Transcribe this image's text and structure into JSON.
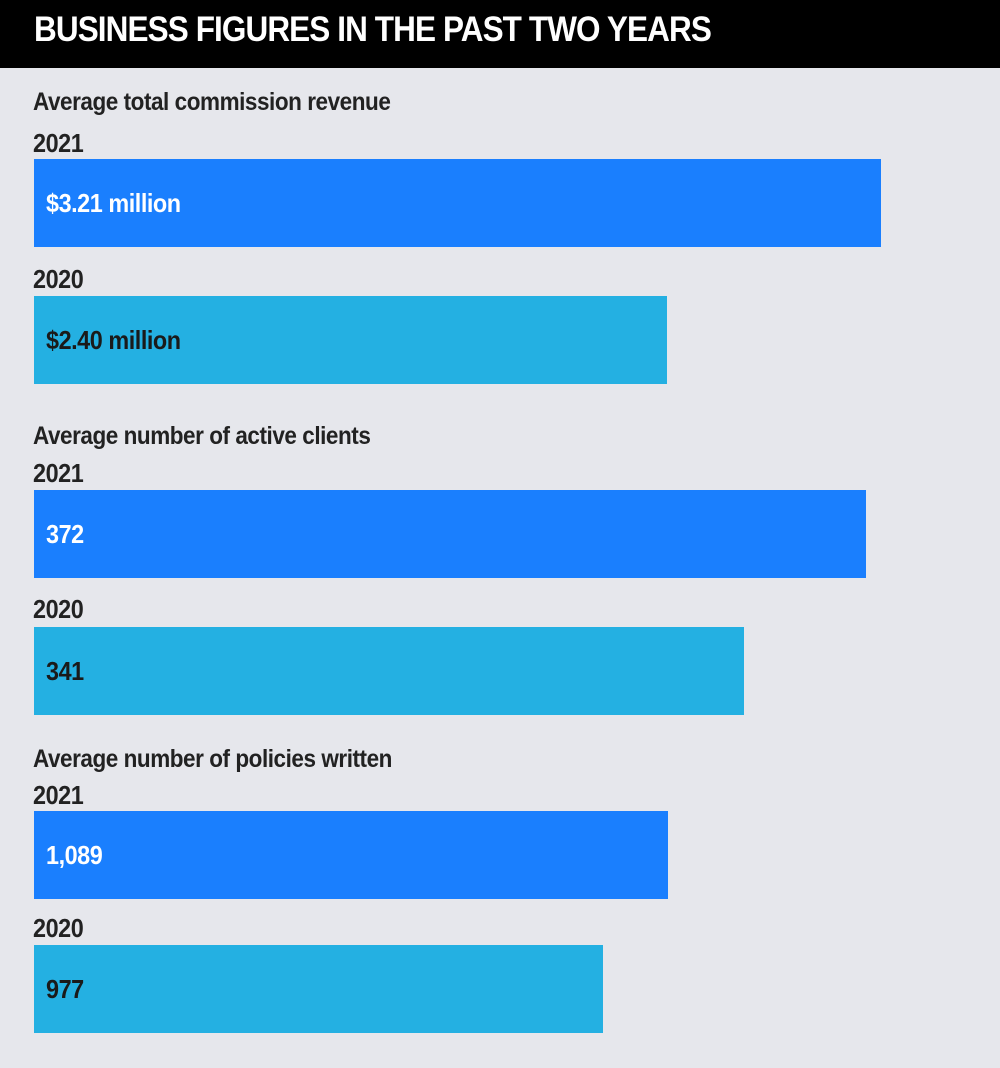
{
  "header": {
    "title": "BUSINESS FIGURES IN THE PAST TWO YEARS"
  },
  "colors": {
    "background": "#e6e7ec",
    "header": "#000000",
    "bar_2021": "#1a7ffe",
    "bar_2020": "#24b0e2",
    "label_on_2021": "#ffffff",
    "label_on_2020": "#1a1a1a"
  },
  "chart_data": [
    {
      "type": "bar",
      "title": "Average total commission revenue",
      "categories": [
        "2021",
        "2020"
      ],
      "values": [
        3.21,
        2.4
      ],
      "labels": [
        "$3.21 million",
        "$2.40 million"
      ],
      "unit": "million"
    },
    {
      "type": "bar",
      "title": "Average number of active clients",
      "categories": [
        "2021",
        "2020"
      ],
      "values": [
        372,
        341
      ],
      "labels": [
        "372",
        "341"
      ]
    },
    {
      "type": "bar",
      "title": "Average number of policies written",
      "categories": [
        "2021",
        "2020"
      ],
      "values": [
        1089,
        977
      ],
      "labels": [
        "1,089",
        "977"
      ]
    }
  ]
}
